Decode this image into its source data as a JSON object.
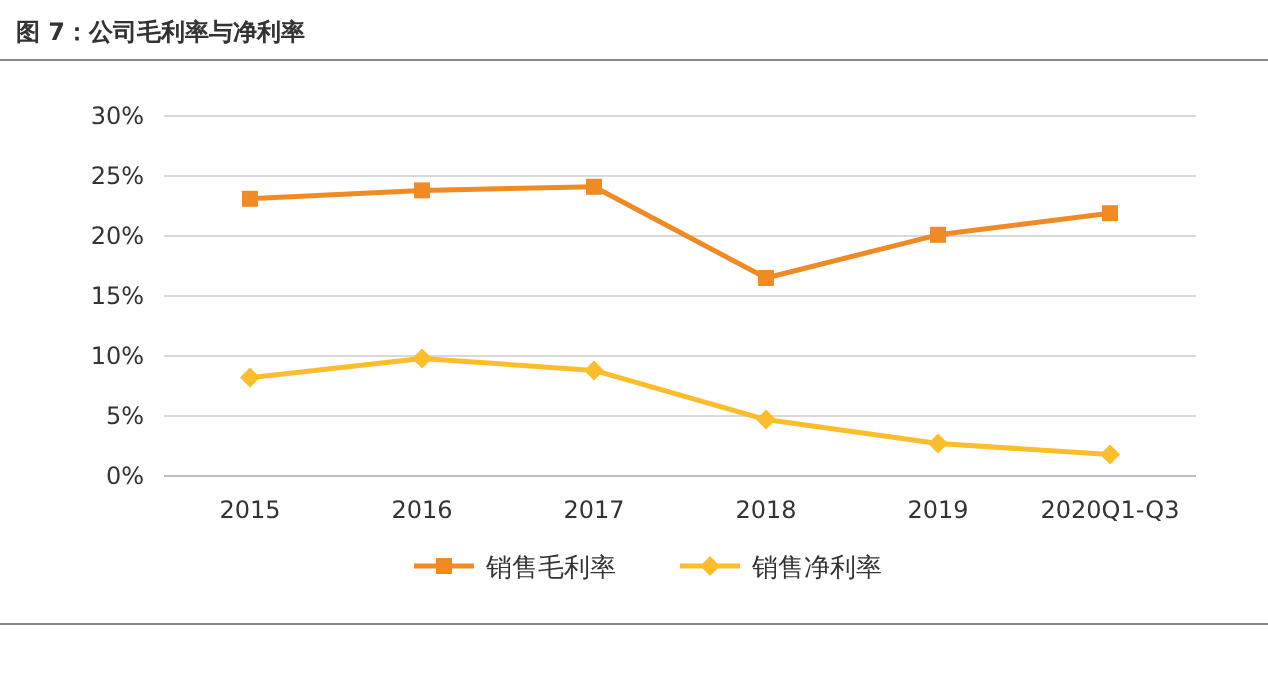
{
  "chart_data": {
    "type": "line",
    "title": "图 7：公司毛利率与净利率",
    "categories": [
      "2015",
      "2016",
      "2017",
      "2018",
      "2019",
      "2020Q1-Q3"
    ],
    "series": [
      {
        "name": "销售毛利率",
        "color": "#f08a24",
        "marker": "square",
        "values": [
          23.1,
          23.8,
          24.1,
          16.5,
          20.1,
          21.9
        ]
      },
      {
        "name": "销售净利率",
        "color": "#fbbd2b",
        "marker": "diamond",
        "values": [
          8.2,
          9.8,
          8.8,
          4.7,
          2.7,
          1.8
        ]
      }
    ],
    "ylim": [
      0,
      30
    ],
    "yticks": [
      {
        "value": 0,
        "label": "0%"
      },
      {
        "value": 5,
        "label": "5%"
      },
      {
        "value": 10,
        "label": "10%"
      },
      {
        "value": 15,
        "label": "15%"
      },
      {
        "value": 20,
        "label": "20%"
      },
      {
        "value": 25,
        "label": "25%"
      },
      {
        "value": 30,
        "label": "30%"
      }
    ],
    "grid": "y",
    "legend": "bottom",
    "line_style": "solid"
  }
}
